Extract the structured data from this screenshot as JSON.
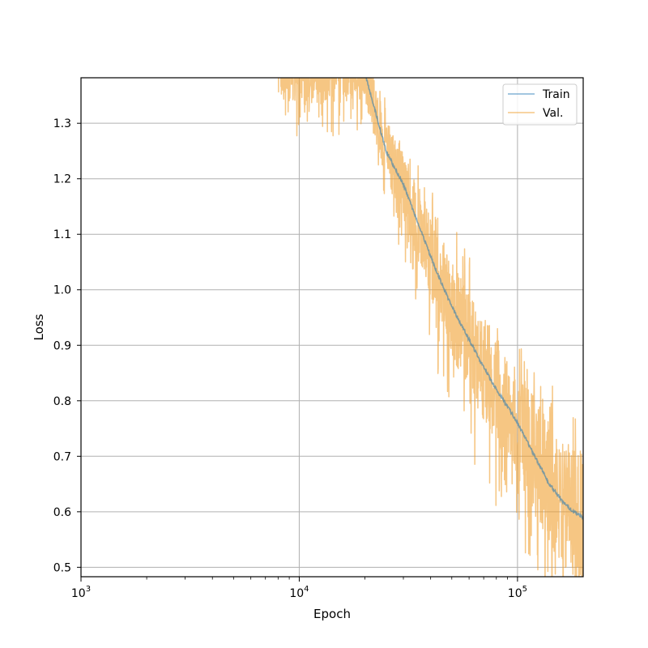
{
  "chart_data": {
    "type": "line",
    "title": "",
    "xlabel": "Epoch",
    "ylabel": "Loss",
    "xscale": "log",
    "xlim": [
      1000,
      200000
    ],
    "ylim": [
      0.483,
      1.382
    ],
    "grid": true,
    "legend_position": "top-right",
    "x_ticks": [
      {
        "value": 1000,
        "base": "10",
        "exp": "3"
      },
      {
        "value": 10000,
        "base": "10",
        "exp": "4"
      },
      {
        "value": 100000,
        "base": "10",
        "exp": "5"
      }
    ],
    "y_ticks": [
      "0.5",
      "0.6",
      "0.7",
      "0.8",
      "0.9",
      "1.0",
      "1.1",
      "1.2",
      "1.3"
    ],
    "series": [
      {
        "name": "Train",
        "color": "#1f77b4",
        "opacity": 0.55,
        "points": [
          [
            20000,
            1.39
          ],
          [
            22000,
            1.33
          ],
          [
            25000,
            1.25
          ],
          [
            30000,
            1.19
          ],
          [
            35000,
            1.12
          ],
          [
            40000,
            1.06
          ],
          [
            45000,
            1.01
          ],
          [
            50000,
            0.97
          ],
          [
            60000,
            0.91
          ],
          [
            70000,
            0.86
          ],
          [
            80000,
            0.82
          ],
          [
            90000,
            0.79
          ],
          [
            100000,
            0.76
          ],
          [
            120000,
            0.7
          ],
          [
            140000,
            0.65
          ],
          [
            160000,
            0.62
          ],
          [
            180000,
            0.6
          ],
          [
            200000,
            0.59
          ]
        ]
      },
      {
        "name": "Val.",
        "color": "#f0a030",
        "opacity": 0.6,
        "mean_points": [
          [
            8000,
            1.4
          ],
          [
            10000,
            1.39
          ],
          [
            13000,
            1.39
          ],
          [
            18000,
            1.39
          ],
          [
            20000,
            1.39
          ],
          [
            22000,
            1.33
          ],
          [
            25000,
            1.25
          ],
          [
            30000,
            1.19
          ],
          [
            35000,
            1.12
          ],
          [
            40000,
            1.06
          ],
          [
            45000,
            1.01
          ],
          [
            50000,
            0.97
          ],
          [
            60000,
            0.91
          ],
          [
            70000,
            0.86
          ],
          [
            80000,
            0.82
          ],
          [
            90000,
            0.79
          ],
          [
            100000,
            0.76
          ],
          [
            120000,
            0.7
          ],
          [
            140000,
            0.65
          ],
          [
            160000,
            0.62
          ],
          [
            180000,
            0.6
          ],
          [
            200000,
            0.59
          ]
        ],
        "noise_amplitude": [
          [
            8000,
            0.06
          ],
          [
            20000,
            0.05
          ],
          [
            30000,
            0.06
          ],
          [
            50000,
            0.09
          ],
          [
            100000,
            0.1
          ],
          [
            200000,
            0.12
          ]
        ]
      }
    ]
  }
}
